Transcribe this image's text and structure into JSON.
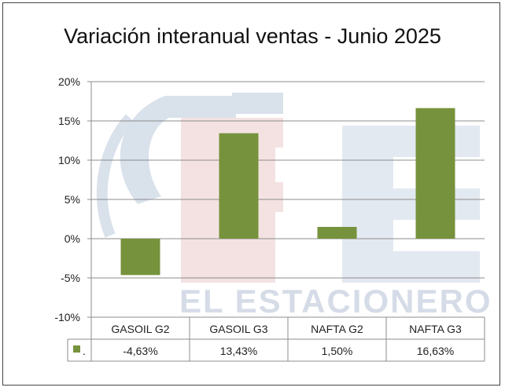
{
  "chart_data": {
    "type": "bar",
    "title": "Variación interanual ventas - Junio 2025",
    "categories": [
      "GASOIL G2",
      "GASOIL G3",
      "NAFTA G2",
      "NAFTA G3"
    ],
    "series": [
      {
        "name": ".",
        "values": [
          -4.63,
          13.43,
          1.5,
          16.63
        ],
        "labels": [
          "-4,63%",
          "13,43%",
          "1,50%",
          "16,63%"
        ],
        "color": "#76923c"
      }
    ],
    "ylim": [
      -10,
      20
    ],
    "yticks": [
      20,
      15,
      10,
      5,
      0,
      -5,
      -10
    ],
    "ytick_labels": [
      "20%",
      "15%",
      "10%",
      "5%",
      "0%",
      "-5%",
      "-10%"
    ],
    "grid": true,
    "data_table": true,
    "xlabel": "",
    "ylabel": ""
  },
  "watermark": {
    "text": "EL ESTACIONERO",
    "colors": {
      "red": "#e8b9b9",
      "blue": "#c7d3e3"
    }
  }
}
